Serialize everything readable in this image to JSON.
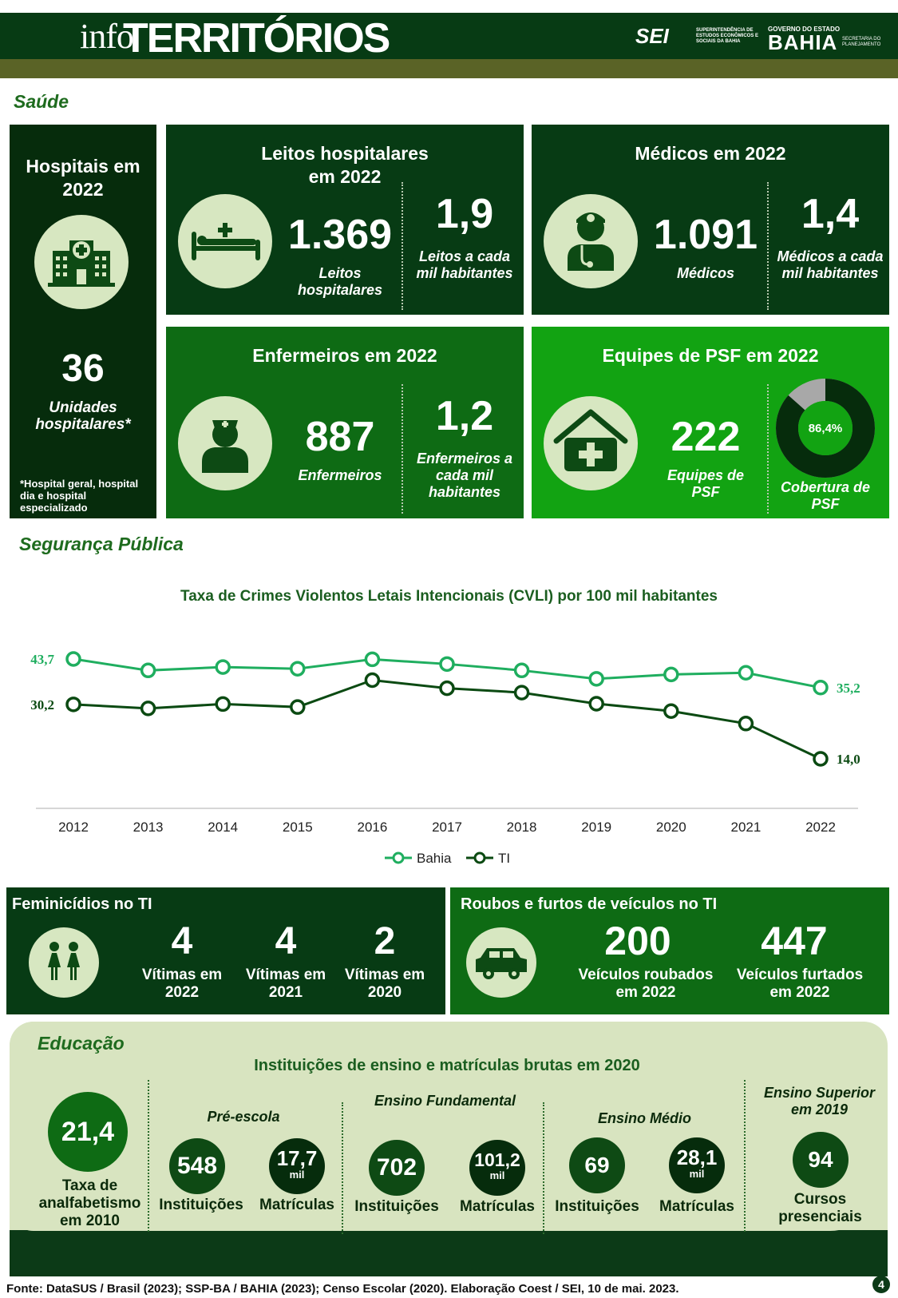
{
  "header": {
    "logo_prefix": "info",
    "logo_main": "TERRITÓRIOS",
    "sei": "SEI",
    "sei_sub": "SUPERINTENDÊNCIA DE ESTUDOS ECONÔMICOS E SOCIAIS DA BAHIA",
    "gov_top": "GOVERNO DO ESTADO",
    "gov_main": "BAHIA",
    "gov_sub": "SECRETARIA DO PLANEJAMENTO"
  },
  "saude": {
    "section_title": "Saúde",
    "hospitais": {
      "title": "Hospitais em 2022",
      "value": "36",
      "label": "Unidades hospitalares*",
      "note": "*Hospital geral, hospital dia e hospital especializado",
      "icon": "hospital-icon"
    },
    "leitos": {
      "title": "Leitos hospitalares em 2022",
      "value": "1.369",
      "label": "Leitos hospitalares",
      "rate": "1,9",
      "rate_label": "Leitos a cada mil habitantes",
      "icon": "bed-icon"
    },
    "medicos": {
      "title": "Médicos em 2022",
      "value": "1.091",
      "label": "Médicos",
      "rate": "1,4",
      "rate_label": "Médicos a cada mil habitantes",
      "icon": "doctor-icon"
    },
    "enfermeiros": {
      "title": "Enfermeiros em 2022",
      "value": "887",
      "label": "Enfermeiros",
      "rate": "1,2",
      "rate_label": "Enfermeiros a cada mil habitantes",
      "icon": "nurse-icon"
    },
    "psf": {
      "title": "Equipes de PSF em 2022",
      "value": "222",
      "label": "Equipes de PSF",
      "coverage": "86,4%",
      "coverage_value": 86.4,
      "coverage_label": "Cobertura de PSF",
      "icon": "health-house-icon"
    }
  },
  "seguranca": {
    "section_title": "Segurança Pública",
    "feminicidios": {
      "title": "Feminicídios no TI",
      "icon": "women-icon",
      "items": [
        {
          "value": "4",
          "label": "Vítimas em 2022"
        },
        {
          "value": "4",
          "label": "Vítimas em 2021"
        },
        {
          "value": "2",
          "label": "Vítimas em 2020"
        }
      ]
    },
    "roubos": {
      "title": "Roubos e furtos de veículos no TI",
      "icon": "car-icon",
      "items": [
        {
          "value": "200",
          "label": "Veículos roubados em 2022"
        },
        {
          "value": "447",
          "label": "Veículos furtados em 2022"
        }
      ]
    }
  },
  "chart_data": {
    "type": "line",
    "title": "Taxa de Crimes Violentos Letais Intencionais (CVLI) por 100 mil habitantes",
    "categories": [
      "2012",
      "2013",
      "2014",
      "2015",
      "2016",
      "2017",
      "2018",
      "2019",
      "2020",
      "2021",
      "2022"
    ],
    "series": [
      {
        "name": "Bahia",
        "color": "#1fae5f",
        "values": [
          43.7,
          40.3,
          41.3,
          40.8,
          43.6,
          42.2,
          40.3,
          37.8,
          39.1,
          39.6,
          35.2
        ],
        "first_label": "43,7",
        "last_label": "35,2"
      },
      {
        "name": "TI",
        "color": "#0b4a12",
        "values": [
          30.2,
          29.0,
          30.3,
          29.4,
          37.4,
          35.0,
          33.7,
          30.4,
          28.2,
          24.5,
          14.0
        ],
        "first_label": "30,2",
        "last_label": "14,0"
      }
    ],
    "legend": "bottom",
    "grid": false
  },
  "educacao": {
    "section_title": "Educação",
    "subtitle": "Instituições de ensino e matrículas brutas em 2020",
    "analfabetismo": {
      "value": "21,4",
      "label": "Taxa de analfabetismo em 2010"
    },
    "pre_escola": {
      "title": "Pré-escola",
      "inst": "548",
      "inst_label": "Instituições",
      "mat": "17,7",
      "mat_unit": "mil",
      "mat_label": "Matrículas"
    },
    "fundamental": {
      "title": "Ensino Fundamental",
      "inst": "702",
      "inst_label": "Instituições",
      "mat": "101,2",
      "mat_unit": "mil",
      "mat_label": "Matrículas"
    },
    "medio": {
      "title": "Ensino Médio",
      "inst": "69",
      "inst_label": "Instituições",
      "mat": "28,1",
      "mat_unit": "mil",
      "mat_label": "Matrículas"
    },
    "superior": {
      "title": "Ensino Superior em 2019",
      "value": "94",
      "label": "Cursos presenciais"
    }
  },
  "footer": {
    "source": "Fonte: DataSUS / Brasil (2023); SSP-BA / BAHIA (2023); Censo Escolar (2020). Elaboração Coest / SEI, 10 de mai. 2023.",
    "page": "4"
  }
}
